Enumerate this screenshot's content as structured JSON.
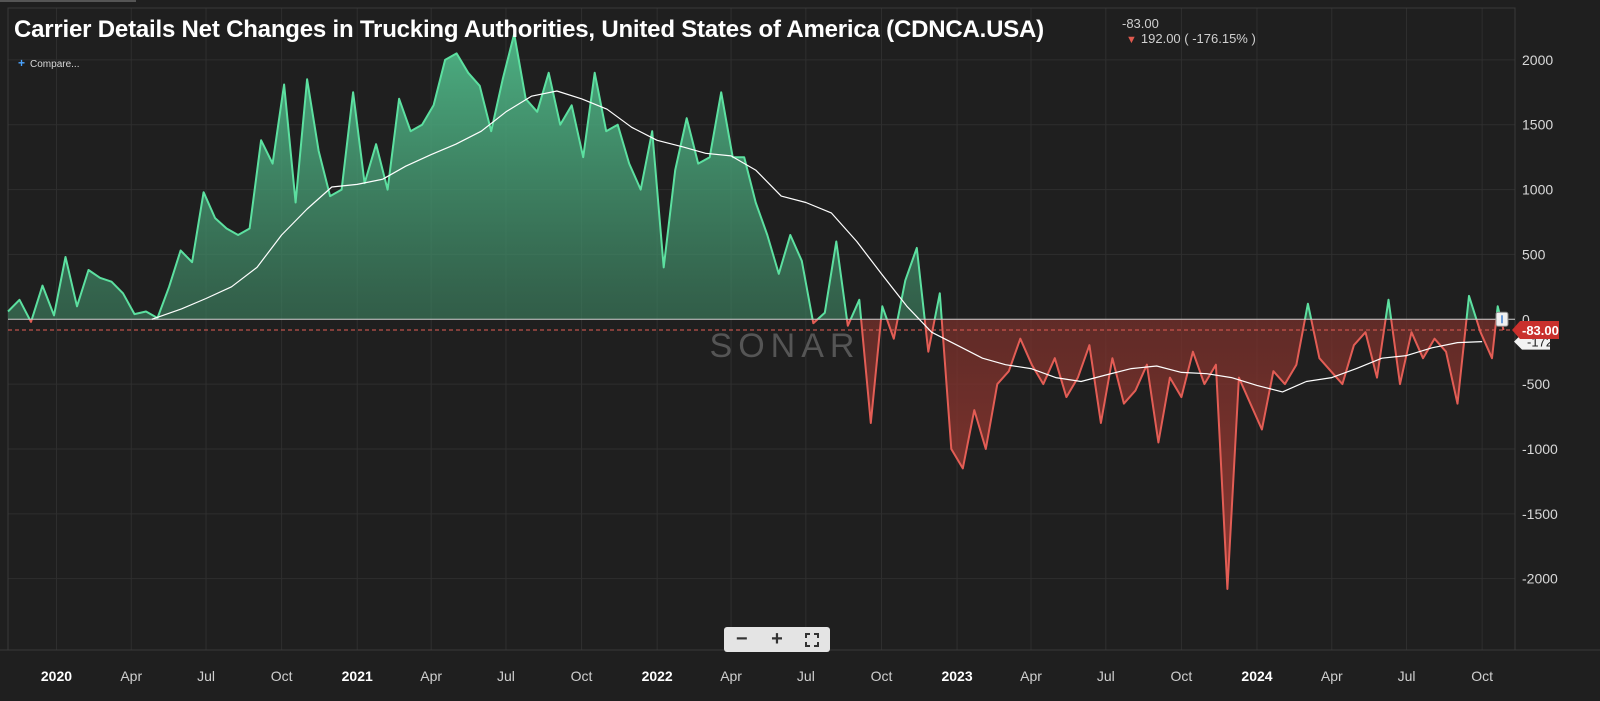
{
  "title": "Carrier Details Net Changes in Trucking Authorities, United States of America (CDNCA.USA)",
  "header": {
    "last_value": "-83.00",
    "change_text": "192.00 ( -176.15% )",
    "compare_label": "Compare..."
  },
  "watermark": "SONAR",
  "zoom_controls": {
    "zoom_out": "−",
    "zoom_in": "+",
    "fullscreen_icon": "fullscreen-icon"
  },
  "current_value_badge": "-83.00",
  "ma_value_badge": "-172",
  "colors": {
    "positive": "#5ce0a0",
    "negative": "#e35d55",
    "moving_average": "#ffffff",
    "background": "#1f1f1f",
    "grid": "#2f2f2f",
    "badge_red": "#c9302c"
  },
  "chart_data": {
    "type": "line",
    "title": "Carrier Details Net Changes in Trucking Authorities, United States of America (CDNCA.USA)",
    "xlabel": "",
    "ylabel": "",
    "ylim": [
      -2550,
      2400
    ],
    "xlim": [
      "2019-11-03",
      "2024-11-10"
    ],
    "yticks": [
      2000,
      1500,
      1000,
      500,
      0,
      -500,
      -1000,
      -1500,
      -2000
    ],
    "ytick_labels": [
      "2000",
      "1500",
      "1000",
      "500",
      "0",
      "-500",
      "-1000",
      "-1500",
      "-2000"
    ],
    "xticks": [
      "2020-01-01",
      "2020-04-01",
      "2020-07-01",
      "2020-10-01",
      "2021-01-01",
      "2021-04-01",
      "2021-07-01",
      "2021-10-01",
      "2022-01-01",
      "2022-04-01",
      "2022-07-01",
      "2022-10-01",
      "2023-01-01",
      "2023-04-01",
      "2023-07-01",
      "2023-10-01",
      "2024-01-01",
      "2024-04-01",
      "2024-07-01",
      "2024-10-01"
    ],
    "xtick_labels": [
      "2020",
      "Apr",
      "Jul",
      "Oct",
      "2021",
      "Apr",
      "Jul",
      "Oct",
      "2022",
      "Apr",
      "Jul",
      "Oct",
      "2023",
      "Apr",
      "Jul",
      "Oct",
      "2024",
      "Apr",
      "Jul",
      "Oct"
    ],
    "bold_xtick_labels": [
      "2020",
      "2021",
      "2022",
      "2023",
      "2024"
    ],
    "grid": true,
    "reference_line": -83,
    "series": [
      {
        "kind": "weekly-net-change",
        "points": [
          [
            "2019-11-03",
            60
          ],
          [
            "2019-11-17",
            150
          ],
          [
            "2019-12-01",
            -20
          ],
          [
            "2019-12-15",
            260
          ],
          [
            "2019-12-29",
            30
          ],
          [
            "2020-01-12",
            480
          ],
          [
            "2020-01-26",
            100
          ],
          [
            "2020-02-09",
            380
          ],
          [
            "2020-02-23",
            320
          ],
          [
            "2020-03-08",
            290
          ],
          [
            "2020-03-22",
            200
          ],
          [
            "2020-04-05",
            40
          ],
          [
            "2020-04-19",
            60
          ],
          [
            "2020-05-03",
            10
          ],
          [
            "2020-05-17",
            250
          ],
          [
            "2020-05-31",
            530
          ],
          [
            "2020-06-14",
            440
          ],
          [
            "2020-06-28",
            980
          ],
          [
            "2020-07-12",
            780
          ],
          [
            "2020-07-26",
            700
          ],
          [
            "2020-08-09",
            650
          ],
          [
            "2020-08-23",
            700
          ],
          [
            "2020-09-06",
            1380
          ],
          [
            "2020-09-20",
            1200
          ],
          [
            "2020-10-04",
            1810
          ],
          [
            "2020-10-18",
            900
          ],
          [
            "2020-11-01",
            1850
          ],
          [
            "2020-11-15",
            1300
          ],
          [
            "2020-11-29",
            950
          ],
          [
            "2020-12-13",
            1000
          ],
          [
            "2020-12-27",
            1750
          ],
          [
            "2021-01-10",
            1050
          ],
          [
            "2021-01-24",
            1350
          ],
          [
            "2021-02-07",
            1000
          ],
          [
            "2021-02-21",
            1700
          ],
          [
            "2021-03-07",
            1450
          ],
          [
            "2021-03-21",
            1500
          ],
          [
            "2021-04-04",
            1650
          ],
          [
            "2021-04-18",
            2000
          ],
          [
            "2021-05-02",
            2050
          ],
          [
            "2021-05-16",
            1900
          ],
          [
            "2021-05-30",
            1800
          ],
          [
            "2021-06-13",
            1450
          ],
          [
            "2021-06-27",
            1850
          ],
          [
            "2021-07-11",
            2200
          ],
          [
            "2021-07-25",
            1700
          ],
          [
            "2021-08-08",
            1600
          ],
          [
            "2021-08-22",
            1900
          ],
          [
            "2021-09-05",
            1500
          ],
          [
            "2021-09-19",
            1650
          ],
          [
            "2021-10-03",
            1250
          ],
          [
            "2021-10-17",
            1900
          ],
          [
            "2021-10-31",
            1450
          ],
          [
            "2021-11-14",
            1500
          ],
          [
            "2021-11-28",
            1200
          ],
          [
            "2021-12-12",
            1000
          ],
          [
            "2021-12-26",
            1450
          ],
          [
            "2022-01-09",
            400
          ],
          [
            "2022-01-23",
            1150
          ],
          [
            "2022-02-06",
            1550
          ],
          [
            "2022-02-20",
            1200
          ],
          [
            "2022-03-06",
            1250
          ],
          [
            "2022-03-20",
            1750
          ],
          [
            "2022-04-03",
            1250
          ],
          [
            "2022-04-17",
            1250
          ],
          [
            "2022-05-01",
            900
          ],
          [
            "2022-05-15",
            650
          ],
          [
            "2022-05-29",
            350
          ],
          [
            "2022-06-12",
            650
          ],
          [
            "2022-06-26",
            450
          ],
          [
            "2022-07-10",
            -30
          ],
          [
            "2022-07-24",
            50
          ],
          [
            "2022-08-07",
            600
          ],
          [
            "2022-08-21",
            -50
          ],
          [
            "2022-09-04",
            150
          ],
          [
            "2022-09-18",
            -800
          ],
          [
            "2022-10-02",
            100
          ],
          [
            "2022-10-16",
            -150
          ],
          [
            "2022-10-30",
            300
          ],
          [
            "2022-11-13",
            550
          ],
          [
            "2022-11-27",
            -250
          ],
          [
            "2022-12-11",
            200
          ],
          [
            "2022-12-25",
            -1000
          ],
          [
            "2023-01-08",
            -1150
          ],
          [
            "2023-01-22",
            -700
          ],
          [
            "2023-02-05",
            -1000
          ],
          [
            "2023-02-19",
            -500
          ],
          [
            "2023-03-05",
            -400
          ],
          [
            "2023-03-19",
            -150
          ],
          [
            "2023-04-02",
            -350
          ],
          [
            "2023-04-16",
            -500
          ],
          [
            "2023-04-30",
            -300
          ],
          [
            "2023-05-14",
            -600
          ],
          [
            "2023-05-28",
            -450
          ],
          [
            "2023-06-11",
            -200
          ],
          [
            "2023-06-25",
            -800
          ],
          [
            "2023-07-09",
            -300
          ],
          [
            "2023-07-23",
            -650
          ],
          [
            "2023-08-06",
            -550
          ],
          [
            "2023-08-20",
            -350
          ],
          [
            "2023-09-03",
            -950
          ],
          [
            "2023-09-17",
            -450
          ],
          [
            "2023-10-01",
            -600
          ],
          [
            "2023-10-15",
            -250
          ],
          [
            "2023-10-29",
            -500
          ],
          [
            "2023-11-12",
            -350
          ],
          [
            "2023-11-26",
            -2080
          ],
          [
            "2023-12-10",
            -450
          ],
          [
            "2023-12-24",
            -650
          ],
          [
            "2024-01-07",
            -850
          ],
          [
            "2024-01-21",
            -400
          ],
          [
            "2024-02-04",
            -500
          ],
          [
            "2024-02-18",
            -350
          ],
          [
            "2024-03-03",
            120
          ],
          [
            "2024-03-17",
            -300
          ],
          [
            "2024-03-31",
            -400
          ],
          [
            "2024-04-14",
            -500
          ],
          [
            "2024-04-28",
            -200
          ],
          [
            "2024-05-12",
            -100
          ],
          [
            "2024-05-26",
            -450
          ],
          [
            "2024-06-09",
            150
          ],
          [
            "2024-06-23",
            -500
          ],
          [
            "2024-07-07",
            -100
          ],
          [
            "2024-07-21",
            -300
          ],
          [
            "2024-08-04",
            -150
          ],
          [
            "2024-08-18",
            -250
          ],
          [
            "2024-09-01",
            -650
          ],
          [
            "2024-09-15",
            180
          ],
          [
            "2024-09-29",
            -100
          ],
          [
            "2024-10-13",
            -300
          ],
          [
            "2024-10-20",
            100
          ],
          [
            "2024-10-27",
            -83
          ]
        ]
      },
      {
        "kind": "moving-average",
        "points": [
          [
            "2020-04-26",
            0
          ],
          [
            "2020-06-01",
            80
          ],
          [
            "2020-07-01",
            160
          ],
          [
            "2020-08-01",
            250
          ],
          [
            "2020-09-01",
            400
          ],
          [
            "2020-10-01",
            650
          ],
          [
            "2020-11-01",
            850
          ],
          [
            "2020-12-01",
            1020
          ],
          [
            "2021-01-01",
            1040
          ],
          [
            "2021-02-01",
            1080
          ],
          [
            "2021-03-01",
            1180
          ],
          [
            "2021-04-01",
            1270
          ],
          [
            "2021-05-01",
            1350
          ],
          [
            "2021-06-01",
            1450
          ],
          [
            "2021-07-01",
            1600
          ],
          [
            "2021-08-01",
            1720
          ],
          [
            "2021-09-01",
            1760
          ],
          [
            "2021-10-01",
            1700
          ],
          [
            "2021-11-01",
            1620
          ],
          [
            "2021-12-01",
            1480
          ],
          [
            "2022-01-01",
            1380
          ],
          [
            "2022-02-01",
            1330
          ],
          [
            "2022-03-01",
            1280
          ],
          [
            "2022-04-01",
            1260
          ],
          [
            "2022-05-01",
            1150
          ],
          [
            "2022-06-01",
            950
          ],
          [
            "2022-07-01",
            900
          ],
          [
            "2022-08-01",
            820
          ],
          [
            "2022-09-01",
            600
          ],
          [
            "2022-10-01",
            350
          ],
          [
            "2022-11-01",
            100
          ],
          [
            "2022-12-01",
            -100
          ],
          [
            "2023-01-01",
            -200
          ],
          [
            "2023-02-01",
            -300
          ],
          [
            "2023-03-01",
            -350
          ],
          [
            "2023-04-01",
            -380
          ],
          [
            "2023-05-01",
            -450
          ],
          [
            "2023-06-01",
            -480
          ],
          [
            "2023-07-01",
            -430
          ],
          [
            "2023-08-01",
            -380
          ],
          [
            "2023-09-01",
            -360
          ],
          [
            "2023-10-01",
            -410
          ],
          [
            "2023-11-01",
            -420
          ],
          [
            "2023-12-01",
            -450
          ],
          [
            "2024-01-01",
            -510
          ],
          [
            "2024-02-01",
            -560
          ],
          [
            "2024-03-01",
            -480
          ],
          [
            "2024-04-01",
            -450
          ],
          [
            "2024-05-01",
            -380
          ],
          [
            "2024-06-01",
            -300
          ],
          [
            "2024-07-01",
            -280
          ],
          [
            "2024-08-01",
            -220
          ],
          [
            "2024-09-01",
            -180
          ],
          [
            "2024-10-01",
            -172
          ]
        ]
      }
    ]
  }
}
